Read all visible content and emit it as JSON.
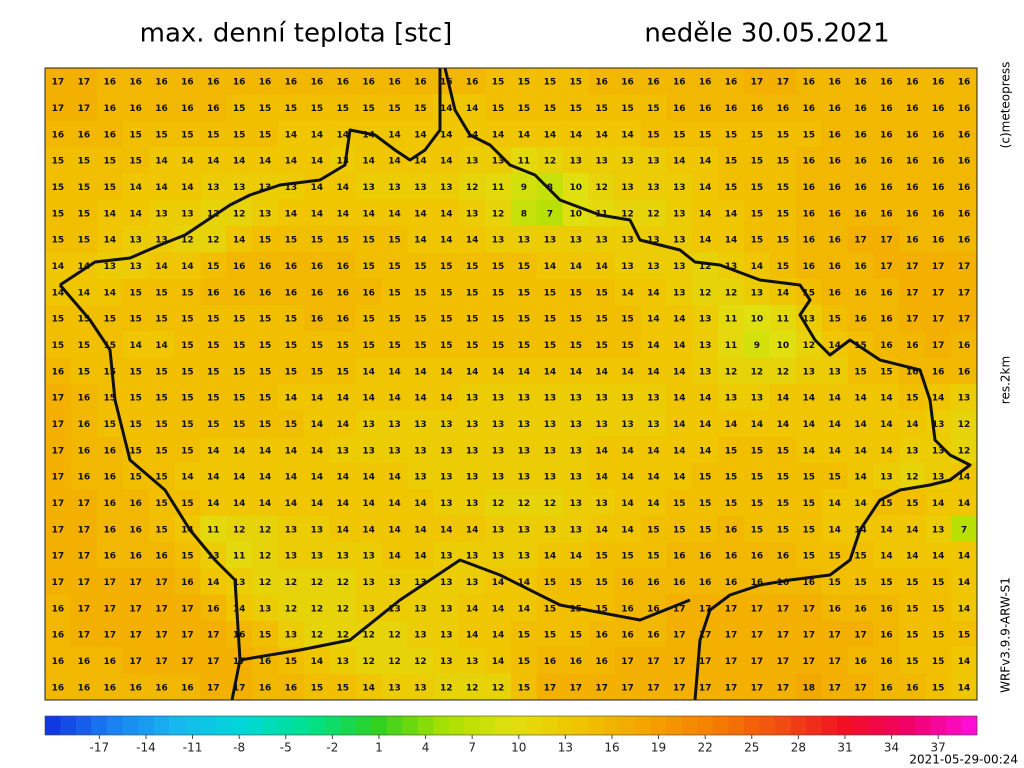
{
  "header": {
    "title": "max. denní teplota [stc]",
    "date": "neděle 30.05.2021"
  },
  "side_labels": {
    "copyright": "(c)meteopress",
    "resolution": "res.2km",
    "model": "WRFv3.9.9-ARW-S1"
  },
  "footer": {
    "timestamp": "2021-05-29-00:24"
  },
  "colorbar": {
    "lim": [
      -20,
      40
    ],
    "colors": [
      "#1030e0",
      "#1a7ff0",
      "#18b8f0",
      "#00d8d8",
      "#00e08a",
      "#30d020",
      "#a8e000",
      "#e0e010",
      "#f0c400",
      "#f4a400",
      "#f48000",
      "#f05010",
      "#f01020",
      "#f0006a",
      "#ff10e0"
    ],
    "ticks": [
      -17,
      -14,
      -11,
      -8,
      -5,
      -2,
      1,
      4,
      7,
      10,
      13,
      16,
      19,
      22,
      25,
      28,
      31,
      34,
      37
    ]
  },
  "grid": [
    [
      17,
      17,
      16,
      16,
      16,
      16,
      16,
      16,
      16,
      16,
      16,
      16,
      16,
      16,
      16,
      16,
      16,
      15,
      15,
      15,
      15,
      16,
      16,
      16,
      16,
      16,
      16,
      17,
      17,
      16,
      16,
      16,
      16,
      16,
      16,
      16
    ],
    [
      17,
      17,
      16,
      16,
      16,
      16,
      16,
      15,
      15,
      15,
      15,
      15,
      15,
      15,
      15,
      14,
      14,
      15,
      15,
      15,
      15,
      15,
      15,
      15,
      16,
      16,
      16,
      16,
      16,
      16,
      16,
      16,
      16,
      16,
      16,
      16
    ],
    [
      16,
      16,
      16,
      15,
      15,
      15,
      15,
      15,
      15,
      14,
      14,
      14,
      14,
      14,
      14,
      14,
      14,
      14,
      14,
      14,
      14,
      14,
      14,
      15,
      15,
      15,
      15,
      15,
      15,
      15,
      16,
      16,
      16,
      16,
      16,
      16
    ],
    [
      15,
      15,
      15,
      15,
      14,
      14,
      14,
      14,
      14,
      14,
      14,
      13,
      14,
      14,
      14,
      14,
      13,
      13,
      11,
      12,
      13,
      13,
      13,
      13,
      14,
      14,
      15,
      15,
      15,
      16,
      16,
      16,
      16,
      16,
      16,
      16
    ],
    [
      15,
      15,
      15,
      14,
      14,
      14,
      13,
      13,
      13,
      13,
      14,
      14,
      13,
      13,
      13,
      13,
      12,
      11,
      9,
      8,
      10,
      12,
      13,
      13,
      13,
      14,
      15,
      15,
      15,
      16,
      16,
      16,
      16,
      16,
      16,
      16
    ],
    [
      15,
      15,
      14,
      14,
      13,
      13,
      12,
      12,
      13,
      14,
      14,
      14,
      14,
      14,
      14,
      14,
      13,
      12,
      8,
      7,
      10,
      11,
      12,
      12,
      13,
      14,
      14,
      15,
      15,
      16,
      16,
      16,
      16,
      16,
      16,
      16
    ],
    [
      15,
      15,
      14,
      13,
      13,
      12,
      12,
      14,
      15,
      15,
      15,
      15,
      15,
      15,
      14,
      14,
      14,
      13,
      13,
      13,
      13,
      13,
      13,
      13,
      13,
      14,
      14,
      15,
      15,
      16,
      16,
      17,
      17,
      16,
      16,
      16
    ],
    [
      14,
      14,
      13,
      13,
      14,
      14,
      15,
      16,
      16,
      16,
      16,
      16,
      15,
      15,
      15,
      15,
      15,
      15,
      15,
      14,
      14,
      14,
      13,
      13,
      13,
      12,
      13,
      14,
      15,
      16,
      16,
      16,
      17,
      17,
      17,
      17
    ],
    [
      14,
      14,
      14,
      15,
      15,
      15,
      16,
      16,
      16,
      16,
      16,
      16,
      16,
      15,
      15,
      15,
      15,
      15,
      15,
      15,
      15,
      15,
      14,
      14,
      13,
      12,
      12,
      13,
      14,
      15,
      16,
      16,
      16,
      17,
      17,
      17
    ],
    [
      15,
      15,
      15,
      15,
      15,
      15,
      15,
      15,
      15,
      15,
      16,
      16,
      15,
      15,
      15,
      15,
      15,
      15,
      15,
      15,
      15,
      15,
      15,
      14,
      14,
      13,
      11,
      10,
      11,
      13,
      15,
      16,
      16,
      17,
      17,
      17
    ],
    [
      15,
      15,
      15,
      14,
      14,
      15,
      15,
      15,
      15,
      15,
      15,
      15,
      15,
      15,
      15,
      15,
      15,
      15,
      15,
      15,
      15,
      15,
      15,
      14,
      14,
      13,
      11,
      9,
      10,
      12,
      14,
      15,
      16,
      16,
      17,
      16
    ],
    [
      16,
      15,
      15,
      15,
      15,
      15,
      15,
      15,
      15,
      15,
      15,
      15,
      14,
      14,
      14,
      14,
      14,
      14,
      14,
      14,
      14,
      14,
      14,
      14,
      14,
      13,
      12,
      12,
      12,
      13,
      13,
      15,
      15,
      16,
      16,
      16
    ],
    [
      17,
      16,
      15,
      15,
      15,
      15,
      15,
      15,
      15,
      14,
      14,
      14,
      14,
      14,
      14,
      14,
      13,
      13,
      13,
      13,
      13,
      13,
      13,
      13,
      14,
      14,
      13,
      13,
      14,
      14,
      14,
      14,
      14,
      15,
      14,
      13
    ],
    [
      17,
      16,
      15,
      15,
      15,
      15,
      15,
      15,
      15,
      15,
      14,
      14,
      13,
      13,
      13,
      13,
      13,
      13,
      13,
      13,
      13,
      13,
      13,
      13,
      14,
      14,
      14,
      14,
      14,
      14,
      14,
      14,
      14,
      14,
      13,
      12
    ],
    [
      17,
      16,
      16,
      15,
      15,
      15,
      14,
      14,
      14,
      14,
      14,
      13,
      13,
      13,
      13,
      13,
      13,
      13,
      13,
      13,
      13,
      14,
      14,
      14,
      14,
      14,
      15,
      15,
      15,
      14,
      14,
      14,
      14,
      13,
      13,
      12
    ],
    [
      17,
      16,
      16,
      15,
      15,
      14,
      14,
      14,
      14,
      14,
      14,
      14,
      14,
      14,
      13,
      13,
      13,
      13,
      13,
      13,
      13,
      14,
      14,
      14,
      14,
      15,
      15,
      15,
      15,
      15,
      15,
      14,
      13,
      12,
      13,
      14
    ],
    [
      17,
      17,
      16,
      16,
      15,
      15,
      14,
      14,
      14,
      14,
      14,
      14,
      14,
      14,
      14,
      13,
      13,
      12,
      12,
      12,
      13,
      13,
      14,
      14,
      15,
      15,
      15,
      15,
      15,
      15,
      14,
      14,
      15,
      15,
      14,
      14
    ],
    [
      17,
      17,
      16,
      16,
      15,
      14,
      11,
      12,
      12,
      13,
      13,
      14,
      14,
      14,
      14,
      14,
      14,
      13,
      13,
      13,
      13,
      14,
      14,
      15,
      15,
      15,
      16,
      15,
      15,
      15,
      14,
      14,
      14,
      14,
      13,
      7
    ],
    [
      17,
      17,
      16,
      16,
      16,
      15,
      13,
      11,
      12,
      13,
      13,
      13,
      13,
      14,
      14,
      13,
      13,
      13,
      13,
      14,
      14,
      15,
      15,
      15,
      16,
      16,
      16,
      16,
      16,
      15,
      15,
      15,
      14,
      14,
      14,
      14
    ],
    [
      17,
      17,
      17,
      17,
      17,
      16,
      14,
      13,
      12,
      12,
      12,
      12,
      13,
      13,
      13,
      13,
      13,
      14,
      14,
      15,
      15,
      15,
      16,
      16,
      16,
      16,
      16,
      16,
      16,
      16,
      15,
      15,
      15,
      15,
      15,
      14
    ],
    [
      16,
      17,
      17,
      17,
      17,
      17,
      16,
      14,
      13,
      12,
      12,
      12,
      13,
      13,
      13,
      13,
      14,
      14,
      14,
      15,
      15,
      15,
      16,
      16,
      17,
      17,
      17,
      17,
      17,
      17,
      16,
      16,
      16,
      15,
      15,
      14
    ],
    [
      16,
      17,
      17,
      17,
      17,
      17,
      17,
      16,
      15,
      13,
      12,
      12,
      12,
      12,
      13,
      13,
      14,
      14,
      15,
      15,
      15,
      16,
      16,
      16,
      17,
      17,
      17,
      17,
      17,
      17,
      17,
      17,
      16,
      15,
      15,
      15
    ],
    [
      16,
      16,
      16,
      17,
      17,
      17,
      17,
      17,
      16,
      15,
      14,
      13,
      12,
      12,
      12,
      13,
      13,
      14,
      15,
      16,
      16,
      16,
      17,
      17,
      17,
      17,
      17,
      17,
      17,
      17,
      17,
      16,
      16,
      15,
      15,
      14
    ],
    [
      16,
      16,
      16,
      16,
      16,
      16,
      17,
      17,
      16,
      16,
      15,
      15,
      14,
      13,
      13,
      12,
      12,
      12,
      15,
      17,
      17,
      17,
      17,
      17,
      17,
      17,
      17,
      17,
      17,
      18,
      17,
      17,
      16,
      16,
      15,
      14
    ]
  ]
}
